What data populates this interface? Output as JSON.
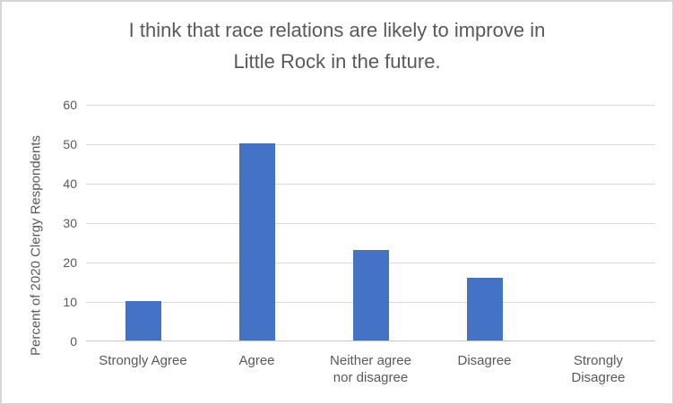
{
  "display": {
    "title_line1": "I think that race relations are likely to improve in",
    "title_line2": "Little Rock in the future."
  },
  "chart_data": {
    "type": "bar",
    "title": "I think that race relations are likely to improve in Little Rock in the future.",
    "categories": [
      "Strongly Agree",
      "Agree",
      "Neither agree nor disagree",
      "Disagree",
      "Strongly Disagree"
    ],
    "values": [
      10,
      50,
      23,
      16,
      0
    ],
    "xlabel": "",
    "ylabel": "Percent of 2020 Clergy Respondents",
    "ylim": [
      0,
      60
    ],
    "yticks": [
      0,
      10,
      20,
      30,
      40,
      50,
      60
    ],
    "grid": true,
    "legend": "none",
    "bar_color": "#4472C4",
    "gridline_color": "#D9D9D9",
    "axis_line_color": "#C6C6C6",
    "text_color": "#595959",
    "border_color": "#D5D5D5",
    "background": "#FFFFFF"
  }
}
